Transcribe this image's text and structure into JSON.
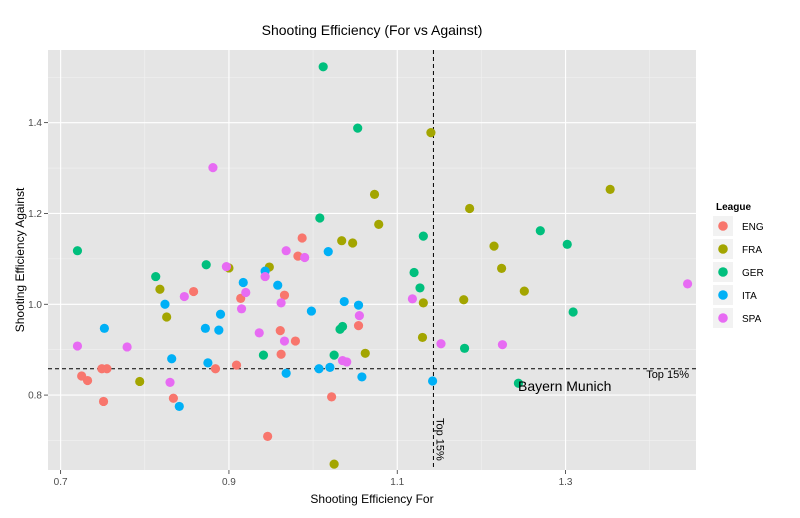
{
  "chart_data": {
    "type": "scatter",
    "title": "Shooting Efficiency (For vs Against)",
    "xlabel": "Shooting Efficiency For",
    "ylabel": "Shooting Efficiency Against",
    "xlim": [
      0.685,
      1.455
    ],
    "ylim": [
      0.635,
      1.56
    ],
    "x_ticks": [
      0.7,
      0.9,
      1.1,
      1.3
    ],
    "x_tick_labels": [
      "0.7",
      "0.9",
      "1.1",
      "1.3"
    ],
    "y_ticks": [
      0.8,
      1.0,
      1.2,
      1.4
    ],
    "y_tick_labels": [
      "0.8",
      "1.0",
      "1.2",
      "1.4"
    ],
    "grid": true,
    "legend": {
      "title": "League",
      "position": "right"
    },
    "reference_lines": {
      "x": 1.143,
      "y": 0.858
    },
    "annotations": {
      "top_x": "Top 15%",
      "top_y": "Top 15%",
      "highlight": "Bayern Munich"
    },
    "series": [
      {
        "name": "ENG",
        "color": "#F8766D",
        "points": [
          [
            0.725,
            0.842
          ],
          [
            0.732,
            0.832
          ],
          [
            0.749,
            0.858
          ],
          [
            0.755,
            0.858
          ],
          [
            0.751,
            0.786
          ],
          [
            0.834,
            0.793
          ],
          [
            0.858,
            1.028
          ],
          [
            0.884,
            0.858
          ],
          [
            0.909,
            0.866
          ],
          [
            0.914,
            1.013
          ],
          [
            0.961,
            0.942
          ],
          [
            0.962,
            0.89
          ],
          [
            0.966,
            1.02
          ],
          [
            0.979,
            0.919
          ],
          [
            0.982,
            1.106
          ],
          [
            0.987,
            1.146
          ],
          [
            1.022,
            0.796
          ],
          [
            1.054,
            0.953
          ],
          [
            0.946,
            0.709
          ]
        ]
      },
      {
        "name": "FRA",
        "color": "#A3A500",
        "points": [
          [
            0.794,
            0.83
          ],
          [
            0.818,
            1.033
          ],
          [
            0.826,
            0.972
          ],
          [
            0.9,
            1.08
          ],
          [
            0.948,
            1.082
          ],
          [
            1.025,
            0.648
          ],
          [
            1.034,
            1.14
          ],
          [
            1.047,
            1.135
          ],
          [
            1.062,
            0.892
          ],
          [
            1.073,
            1.242
          ],
          [
            1.078,
            1.176
          ],
          [
            1.13,
            0.927
          ],
          [
            1.131,
            1.003
          ],
          [
            1.14,
            1.378
          ],
          [
            1.179,
            1.01
          ],
          [
            1.186,
            1.211
          ],
          [
            1.215,
            1.128
          ],
          [
            1.224,
            1.079
          ],
          [
            1.251,
            1.029
          ],
          [
            1.353,
            1.253
          ]
        ]
      },
      {
        "name": "GER",
        "color": "#00BF7D",
        "points": [
          [
            0.72,
            1.118
          ],
          [
            0.813,
            1.061
          ],
          [
            0.873,
            1.087
          ],
          [
            0.941,
            0.888
          ],
          [
            1.008,
            1.19
          ],
          [
            1.012,
            1.523
          ],
          [
            1.025,
            0.888
          ],
          [
            1.032,
            0.945
          ],
          [
            1.035,
            0.951
          ],
          [
            1.053,
            1.388
          ],
          [
            1.12,
            1.07
          ],
          [
            1.127,
            1.036
          ],
          [
            1.131,
            1.15
          ],
          [
            1.18,
            0.903
          ],
          [
            1.244,
            0.826
          ],
          [
            1.27,
            1.162
          ],
          [
            1.302,
            1.132
          ],
          [
            1.309,
            0.983
          ]
        ]
      },
      {
        "name": "ITA",
        "color": "#00B0F6",
        "points": [
          [
            0.752,
            0.947
          ],
          [
            0.824,
            1.0
          ],
          [
            0.832,
            0.88
          ],
          [
            0.841,
            0.775
          ],
          [
            0.872,
            0.947
          ],
          [
            0.875,
            0.871
          ],
          [
            0.888,
            0.943
          ],
          [
            0.89,
            0.978
          ],
          [
            0.917,
            1.048
          ],
          [
            0.943,
            1.073
          ],
          [
            0.958,
            1.042
          ],
          [
            0.968,
            0.848
          ],
          [
            0.998,
            0.985
          ],
          [
            1.007,
            0.858
          ],
          [
            1.018,
            1.116
          ],
          [
            1.02,
            0.861
          ],
          [
            1.037,
            1.006
          ],
          [
            1.054,
            0.998
          ],
          [
            1.058,
            0.84
          ],
          [
            1.142,
            0.831
          ]
        ]
      },
      {
        "name": "SPA",
        "color": "#E76BF3",
        "points": [
          [
            0.72,
            0.908
          ],
          [
            0.779,
            0.906
          ],
          [
            0.83,
            0.828
          ],
          [
            0.847,
            1.017
          ],
          [
            0.881,
            1.301
          ],
          [
            0.897,
            1.083
          ],
          [
            0.915,
            0.99
          ],
          [
            0.92,
            1.026
          ],
          [
            0.936,
            0.937
          ],
          [
            0.943,
            1.061
          ],
          [
            0.962,
            1.003
          ],
          [
            0.966,
            0.919
          ],
          [
            0.968,
            1.118
          ],
          [
            0.99,
            1.103
          ],
          [
            1.035,
            0.876
          ],
          [
            1.04,
            0.873
          ],
          [
            1.055,
            0.975
          ],
          [
            1.118,
            1.012
          ],
          [
            1.152,
            0.913
          ],
          [
            1.225,
            0.911
          ],
          [
            1.445,
            1.045
          ]
        ]
      }
    ]
  }
}
